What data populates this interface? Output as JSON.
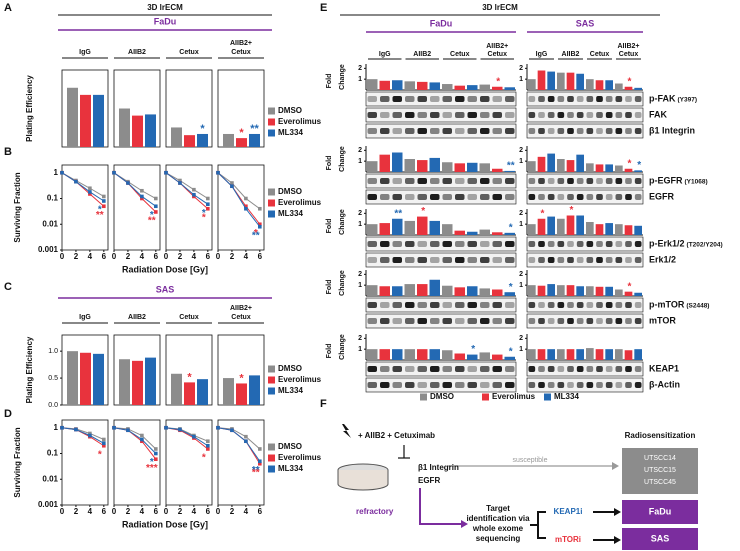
{
  "panel_letters": [
    "A",
    "B",
    "C",
    "D",
    "E",
    "F"
  ],
  "chart_data": [
    {
      "type": "bar",
      "header": "3D lrECM",
      "cell_line": "FaDu",
      "ylabel": "Plating Efficiency",
      "ylim": [
        0,
        1.3
      ],
      "series": [
        {
          "name": "DMSO",
          "color": "#8c8c8c"
        },
        {
          "name": "Everolimus",
          "color": "#e8333d"
        },
        {
          "name": "ML334",
          "color": "#2369b3"
        }
      ],
      "groups": [
        {
          "label": [
            "IgG"
          ],
          "values": [
            1.0,
            0.88,
            0.88
          ],
          "sig": [
            null,
            null,
            null
          ]
        },
        {
          "label": [
            "AIIB2"
          ],
          "values": [
            0.65,
            0.53,
            0.55
          ],
          "sig": [
            null,
            null,
            null
          ]
        },
        {
          "label": [
            "Cetux"
          ],
          "values": [
            0.33,
            0.2,
            0.22
          ],
          "sig": [
            null,
            null,
            "*"
          ]
        },
        {
          "label": [
            "AIIB2+",
            "Cetux"
          ],
          "values": [
            0.22,
            0.15,
            0.22
          ],
          "sig": [
            null,
            "*",
            "**"
          ]
        }
      ]
    },
    {
      "type": "line",
      "ylabel": "Surviving Fraction",
      "xlabel": "Radiation Dose [Gy]",
      "log_y": true,
      "ylim": [
        0.001,
        2
      ],
      "yticks": [
        1,
        0.1,
        0.01,
        0.001
      ],
      "x": [
        0,
        2,
        4,
        6
      ],
      "xlim": [
        0,
        6.6
      ],
      "xticks": [
        0,
        2,
        4,
        6
      ],
      "series": [
        {
          "name": "DMSO",
          "color": "#8c8c8c"
        },
        {
          "name": "Everolimus",
          "color": "#e8333d"
        },
        {
          "name": "ML334",
          "color": "#2369b3"
        }
      ],
      "groups": [
        {
          "values": [
            [
              1,
              0.5,
              0.25,
              0.12
            ],
            [
              1,
              0.45,
              0.15,
              0.05
            ],
            [
              1,
              0.45,
              0.18,
              0.08
            ]
          ],
          "sig": [
            null,
            "**",
            "*"
          ]
        },
        {
          "values": [
            [
              1,
              0.45,
              0.2,
              0.1
            ],
            [
              1,
              0.4,
              0.1,
              0.03
            ],
            [
              1,
              0.4,
              0.12,
              0.05
            ]
          ],
          "sig": [
            null,
            "**",
            "*"
          ]
        },
        {
          "values": [
            [
              1,
              0.5,
              0.22,
              0.1
            ],
            [
              1,
              0.4,
              0.12,
              0.04
            ],
            [
              1,
              0.4,
              0.14,
              0.06
            ]
          ],
          "sig": [
            null,
            "*",
            "*"
          ]
        },
        {
          "values": [
            [
              1,
              0.4,
              0.1,
              0.04
            ],
            [
              1,
              0.3,
              0.05,
              0.01
            ],
            [
              1,
              0.3,
              0.04,
              0.008
            ]
          ],
          "sig": [
            null,
            "*",
            "**"
          ]
        }
      ]
    },
    {
      "type": "bar",
      "cell_line": "SAS",
      "ylabel": "Plating Efficiency",
      "ylim": [
        0,
        1.3
      ],
      "yticks": [
        {
          "value": 0,
          "label": "0.0"
        },
        {
          "value": 0.5,
          "label": "0.5"
        },
        {
          "value": 1,
          "label": "1.0"
        }
      ],
      "series": [
        {
          "name": "DMSO",
          "color": "#8c8c8c"
        },
        {
          "name": "Everolimus",
          "color": "#e8333d"
        },
        {
          "name": "ML334",
          "color": "#2369b3"
        }
      ],
      "groups": [
        {
          "label": [
            "IgG"
          ],
          "values": [
            1.0,
            0.97,
            0.95
          ],
          "sig": [
            null,
            null,
            null
          ]
        },
        {
          "label": [
            "AIIB2"
          ],
          "values": [
            0.85,
            0.82,
            0.88
          ],
          "sig": [
            null,
            null,
            null
          ]
        },
        {
          "label": [
            "Cetux"
          ],
          "values": [
            0.58,
            0.42,
            0.48
          ],
          "sig": [
            null,
            "*",
            null
          ]
        },
        {
          "label": [
            "AIIB2+",
            "Cetux"
          ],
          "values": [
            0.5,
            0.4,
            0.55
          ],
          "sig": [
            null,
            "*",
            null
          ]
        }
      ]
    },
    {
      "type": "line",
      "ylabel": "Surviving Fraction",
      "xlabel": "Radiation Dose [Gy]",
      "log_y": true,
      "ylim": [
        0.001,
        2
      ],
      "yticks": [
        1,
        0.1,
        0.01,
        0.001
      ],
      "x": [
        0,
        2,
        4,
        6
      ],
      "xlim": [
        0,
        6.6
      ],
      "xticks": [
        0,
        2,
        4,
        6
      ],
      "series": [
        {
          "name": "DMSO",
          "color": "#8c8c8c"
        },
        {
          "name": "Everolimus",
          "color": "#e8333d"
        },
        {
          "name": "ML334",
          "color": "#2369b3"
        }
      ],
      "groups": [
        {
          "values": [
            [
              1,
              0.9,
              0.6,
              0.35
            ],
            [
              1,
              0.85,
              0.45,
              0.2
            ],
            [
              1,
              0.85,
              0.5,
              0.25
            ]
          ],
          "sig": [
            null,
            "*",
            null
          ]
        },
        {
          "values": [
            [
              1,
              0.9,
              0.5,
              0.15
            ],
            [
              1,
              0.8,
              0.3,
              0.06
            ],
            [
              1,
              0.8,
              0.35,
              0.1
            ]
          ],
          "sig": [
            null,
            "***",
            "*"
          ]
        },
        {
          "values": [
            [
              1,
              0.9,
              0.5,
              0.3
            ],
            [
              1,
              0.8,
              0.4,
              0.15
            ],
            [
              1,
              0.85,
              0.45,
              0.2
            ]
          ],
          "sig": [
            null,
            "*",
            null
          ]
        },
        {
          "values": [
            [
              1,
              0.9,
              0.45,
              0.15
            ],
            [
              1,
              0.8,
              0.3,
              0.04
            ],
            [
              1,
              0.8,
              0.3,
              0.05
            ]
          ],
          "sig": [
            null,
            "**",
            "**"
          ]
        }
      ]
    },
    {
      "type": "blot",
      "header": "3D lrECM",
      "ylabel": [
        "Fold",
        "Change"
      ],
      "ylim": [
        0,
        2.4
      ],
      "yticks": [
        1,
        2
      ],
      "columns": [
        "FaDu",
        "SAS"
      ],
      "groups": [
        [
          "IgG"
        ],
        [
          "AIIB2"
        ],
        [
          "Cetux"
        ],
        [
          "AIIB2+",
          "Cetux"
        ]
      ],
      "series": [
        {
          "name": "DMSO",
          "color": "#8c8c8c"
        },
        {
          "name": "Everolimus",
          "color": "#e8333d"
        },
        {
          "name": "ML334",
          "color": "#2369b3"
        }
      ],
      "rows": [
        {
          "blots": [
            {
              "name": "p-FAK",
              "site": "(Y397)"
            },
            {
              "name": "FAK"
            },
            {
              "name": "β1 Integrin"
            }
          ],
          "FaDu": {
            "values": [
              1,
              0.85,
              0.9,
              0.8,
              0.75,
              0.7,
              0.55,
              0.4,
              0.45,
              0.5,
              0.3,
              0.25
            ],
            "sig": [
              null,
              null,
              null,
              null,
              null,
              null,
              null,
              null,
              null,
              null,
              "*",
              null
            ]
          },
          "SAS": {
            "values": [
              1,
              1.8,
              1.7,
              1.6,
              1.6,
              1.5,
              1.0,
              0.9,
              0.9,
              0.6,
              0.3,
              0.2
            ],
            "sig": [
              null,
              null,
              null,
              null,
              null,
              null,
              null,
              null,
              null,
              null,
              "*",
              null
            ]
          }
        },
        {
          "blots": [
            {
              "name": "p-EGFR",
              "site": "(Y1068)"
            },
            {
              "name": "EGFR"
            }
          ],
          "FaDu": {
            "values": [
              1,
              1.6,
              1.8,
              1.2,
              1.1,
              1.3,
              0.9,
              0.8,
              0.85,
              0.8,
              0.3,
              0.1
            ],
            "sig": [
              null,
              null,
              null,
              null,
              null,
              null,
              null,
              null,
              null,
              null,
              null,
              "**"
            ]
          },
          "SAS": {
            "values": [
              1,
              1.4,
              1.7,
              1.2,
              1.1,
              1.6,
              0.8,
              0.7,
              0.7,
              0.6,
              0.3,
              0.15
            ],
            "sig": [
              null,
              null,
              null,
              null,
              null,
              null,
              null,
              null,
              null,
              null,
              "*",
              "*"
            ]
          }
        },
        {
          "blots": [
            {
              "name": "p-Erk1/2",
              "site": "(T202/Y204)"
            },
            {
              "name": "Erk1/2"
            }
          ],
          "FaDu": {
            "values": [
              1,
              1.1,
              1.5,
              1.3,
              1.7,
              1.3,
              1.0,
              0.4,
              0.3,
              0.5,
              0.25,
              0.2
            ],
            "sig": [
              null,
              null,
              "**",
              null,
              "*",
              null,
              null,
              null,
              null,
              null,
              null,
              "*"
            ]
          },
          "SAS": {
            "values": [
              1,
              1.5,
              1.7,
              1.5,
              1.8,
              1.8,
              1.2,
              1.0,
              1.1,
              1.0,
              0.9,
              0.85
            ],
            "sig": [
              null,
              "*",
              null,
              null,
              "*",
              null,
              null,
              null,
              null,
              null,
              null,
              null
            ]
          }
        },
        {
          "blots": [
            {
              "name": "p-mTOR",
              "site": "(S2448)"
            },
            {
              "name": "mTOR"
            }
          ],
          "FaDu": {
            "values": [
              1,
              0.9,
              0.9,
              1.1,
              1.1,
              1.5,
              0.95,
              0.8,
              0.9,
              0.7,
              0.6,
              0.35
            ],
            "sig": [
              null,
              null,
              null,
              null,
              null,
              null,
              null,
              null,
              null,
              null,
              null,
              "*"
            ]
          },
          "SAS": {
            "values": [
              1,
              0.95,
              1.1,
              1.0,
              1.0,
              0.9,
              0.9,
              0.85,
              0.85,
              0.6,
              0.4,
              0.3
            ],
            "sig": [
              null,
              null,
              null,
              null,
              null,
              null,
              null,
              null,
              null,
              null,
              "*",
              null
            ]
          }
        },
        {
          "blots": [
            {
              "name": "KEAP1"
            },
            {
              "name": "β-Actin"
            }
          ],
          "FaDu": {
            "values": [
              1,
              1.0,
              1.0,
              1.0,
              1.0,
              1.0,
              0.9,
              0.6,
              0.5,
              0.7,
              0.5,
              0.3
            ],
            "sig": [
              null,
              null,
              null,
              null,
              null,
              null,
              null,
              null,
              "*",
              null,
              null,
              "*"
            ]
          },
          "SAS": {
            "values": [
              1,
              1.0,
              1.0,
              1.0,
              1.0,
              1.0,
              1.1,
              1.0,
              1.0,
              1.0,
              0.9,
              1.0
            ],
            "sig": [
              null,
              null,
              null,
              null,
              null,
              null,
              null,
              null,
              null,
              null,
              null,
              null
            ]
          }
        }
      ]
    }
  ],
  "diagram": {
    "treatment": "+ AIIB2 + Cetuximab",
    "targets": [
      "β1 Integrin",
      "EGFR"
    ],
    "outcome_title": "Radiosensitization",
    "susceptible": "susceptible",
    "susceptible_lines": [
      "UTSCC14",
      "UTSCC15",
      "UTSCC45"
    ],
    "refractory": "refractory",
    "method": [
      "Target",
      "identification via",
      "whole exome",
      "sequencing"
    ],
    "inhibitors": [
      {
        "name": "KEAP1i",
        "color": "#2369b3",
        "cell_line": "FaDu"
      },
      {
        "name": "mTORi",
        "color": "#e8333d",
        "cell_line": "SAS"
      }
    ]
  }
}
